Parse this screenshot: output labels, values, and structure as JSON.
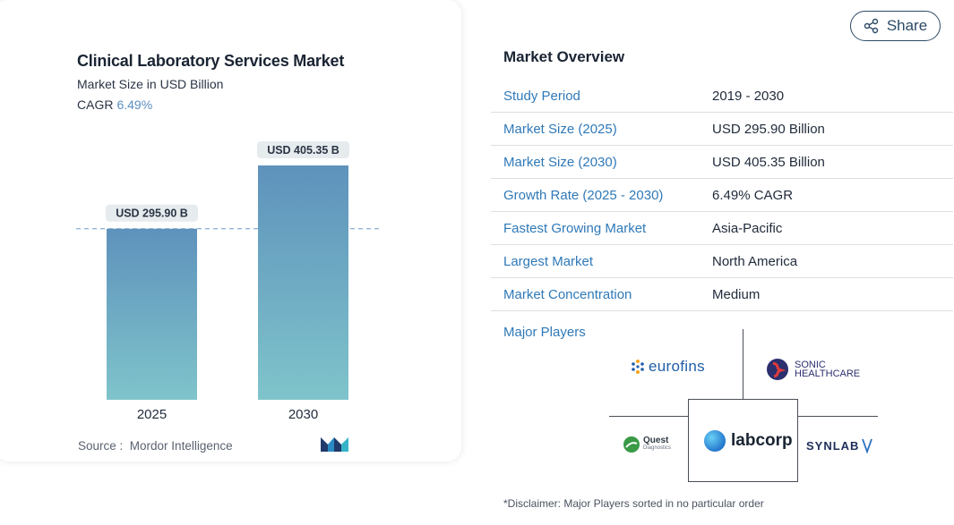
{
  "chart_card": {
    "title": "Clinical Laboratory Services Market",
    "subtitle": "Market Size in USD Billion",
    "cagr_label": "CAGR",
    "cagr_value": "6.49%",
    "source_label": "Source :",
    "source_value": "Mordor Intelligence",
    "logo_name": "mordor-intelligence-logo"
  },
  "chart_data": {
    "type": "bar",
    "title": "Clinical Laboratory Services Market",
    "subtitle": "Market Size in USD Billion",
    "categories": [
      "2025",
      "2030"
    ],
    "values": [
      295.9,
      405.35
    ],
    "data_labels": [
      "USD 295.90 B",
      "USD 405.35 B"
    ],
    "ylim": [
      0,
      405.35
    ],
    "reference_line": 295.9,
    "grid": false,
    "colors": {
      "bar_top": "#5e92bc",
      "bar_bottom": "#7fc4cb",
      "label_bg": "#e6ebee",
      "reference_line": "#6f9ccc"
    }
  },
  "share": {
    "label": "Share",
    "icon": "share-icon"
  },
  "overview": {
    "title": "Market Overview",
    "rows": [
      {
        "key": "Study Period",
        "value": "2019 - 2030"
      },
      {
        "key": "Market Size (2025)",
        "value": "USD 295.90 Billion"
      },
      {
        "key": "Market Size (2030)",
        "value": "USD 405.35 Billion"
      },
      {
        "key": "Growth Rate (2025 - 2030)",
        "value": "6.49% CAGR"
      },
      {
        "key": "Fastest Growing Market",
        "value": "Asia-Pacific"
      },
      {
        "key": "Largest Market",
        "value": "North America"
      },
      {
        "key": "Market Concentration",
        "value": "Medium"
      }
    ]
  },
  "players": {
    "title": "Major Players",
    "logos": [
      {
        "name": "eurofins",
        "text": "eurofins"
      },
      {
        "name": "sonic-healthcare",
        "text_line1": "SONIC",
        "text_line2": "HEALTHCARE"
      },
      {
        "name": "quest-diagnostics",
        "text_line1": "Quest",
        "text_line2": "Diagnostics"
      },
      {
        "name": "labcorp",
        "text": "labcorp"
      },
      {
        "name": "synlab",
        "text": "SYNLAB"
      }
    ]
  },
  "disclaimer": "*Disclaimer: Major Players sorted in no particular order",
  "accent_color": "#2f79b8"
}
